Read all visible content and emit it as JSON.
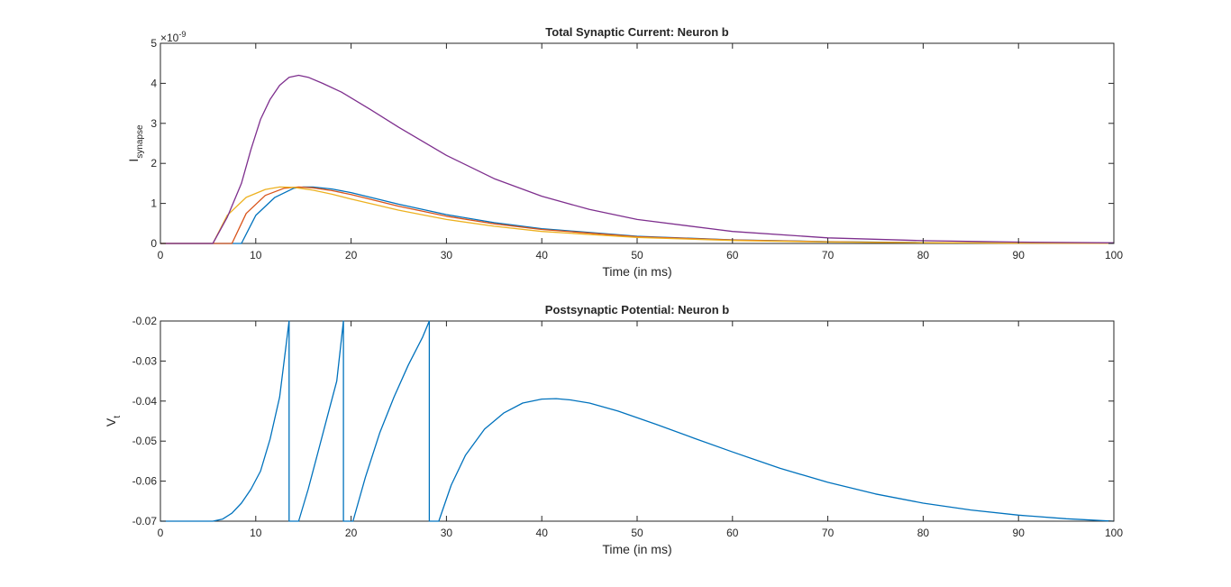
{
  "chart_data": [
    {
      "type": "line",
      "title": "Total Synaptic Current: Neuron b",
      "xlabel": "Time (in ms)",
      "ylabel_main": "I",
      "ylabel_sub": "synapse",
      "exponent_base": "×10",
      "exponent_power": "-9",
      "xlim": [
        0,
        100
      ],
      "ylim": [
        0,
        5
      ],
      "xticks": [
        "0",
        "10",
        "20",
        "30",
        "40",
        "50",
        "60",
        "70",
        "80",
        "90",
        "100"
      ],
      "yticks": [
        "0",
        "1",
        "2",
        "3",
        "4",
        "5"
      ],
      "grid": false,
      "series": [
        {
          "color": "#0072BD",
          "x": [
            0,
            8.5,
            10,
            12,
            14,
            15,
            16,
            18,
            20,
            25,
            30,
            35,
            40,
            50,
            60,
            70,
            80,
            90,
            100
          ],
          "y": [
            0,
            0,
            0.7,
            1.15,
            1.38,
            1.41,
            1.41,
            1.36,
            1.27,
            0.98,
            0.72,
            0.52,
            0.37,
            0.18,
            0.09,
            0.045,
            0.022,
            0.011,
            0.005
          ]
        },
        {
          "color": "#D95319",
          "x": [
            0,
            7.5,
            9,
            11,
            13,
            14.5,
            16,
            18,
            20,
            25,
            30,
            35,
            40,
            50,
            60,
            70,
            80,
            90,
            100
          ],
          "y": [
            0,
            0,
            0.75,
            1.2,
            1.38,
            1.41,
            1.39,
            1.32,
            1.22,
            0.93,
            0.68,
            0.49,
            0.35,
            0.17,
            0.085,
            0.042,
            0.021,
            0.01,
            0.005
          ]
        },
        {
          "color": "#EDB120",
          "x": [
            0,
            5.5,
            7,
            9,
            11,
            12.5,
            14,
            16,
            18,
            20,
            25,
            30,
            35,
            40,
            50,
            60,
            70,
            80,
            90,
            100
          ],
          "y": [
            0,
            0,
            0.7,
            1.15,
            1.35,
            1.41,
            1.4,
            1.33,
            1.23,
            1.11,
            0.83,
            0.6,
            0.43,
            0.3,
            0.15,
            0.075,
            0.037,
            0.018,
            0.009,
            0.004
          ]
        },
        {
          "color": "#7E2F8E",
          "x": [
            0,
            5.5,
            7,
            8.5,
            9.5,
            10.5,
            11.5,
            12.5,
            13.5,
            14.5,
            15.5,
            17,
            19,
            22,
            25,
            30,
            35,
            40,
            45,
            50,
            60,
            70,
            80,
            90,
            100
          ],
          "y": [
            0,
            0,
            0.65,
            1.5,
            2.35,
            3.1,
            3.6,
            3.95,
            4.15,
            4.2,
            4.15,
            4.0,
            3.78,
            3.35,
            2.9,
            2.2,
            1.62,
            1.18,
            0.85,
            0.6,
            0.3,
            0.14,
            0.07,
            0.033,
            0.016
          ]
        }
      ]
    },
    {
      "type": "line",
      "title": "Postsynaptic Potential: Neuron b",
      "xlabel": "Time (in ms)",
      "ylabel_main": "V",
      "ylabel_sub": "t",
      "xlim": [
        0,
        100
      ],
      "ylim": [
        -0.07,
        -0.02
      ],
      "xticks": [
        "0",
        "10",
        "20",
        "30",
        "40",
        "50",
        "60",
        "70",
        "80",
        "90",
        "100"
      ],
      "yticks": [
        "-0.07",
        "-0.06",
        "-0.05",
        "-0.04",
        "-0.03",
        "-0.02"
      ],
      "grid": false,
      "series": [
        {
          "color": "#0072BD",
          "x": [
            0,
            5.5,
            6.5,
            7.5,
            8.5,
            9.5,
            10.5,
            11.5,
            12.5,
            13.5,
            13.5,
            14.5,
            15.5,
            16.5,
            17.5,
            18.5,
            19.2,
            19.2,
            20.2,
            21.5,
            23,
            24.5,
            26,
            27.5,
            28.2,
            28.2,
            29.2,
            30.5,
            32,
            34,
            36,
            38,
            40,
            41.5,
            43,
            45,
            48,
            52,
            56,
            60,
            65,
            70,
            75,
            80,
            85,
            90,
            95,
            100
          ],
          "y": [
            -0.07,
            -0.07,
            -0.0695,
            -0.068,
            -0.0655,
            -0.062,
            -0.0575,
            -0.0495,
            -0.039,
            -0.02,
            -0.07,
            -0.07,
            -0.062,
            -0.053,
            -0.044,
            -0.035,
            -0.02,
            -0.07,
            -0.07,
            -0.059,
            -0.048,
            -0.039,
            -0.031,
            -0.024,
            -0.02,
            -0.07,
            -0.07,
            -0.061,
            -0.0535,
            -0.047,
            -0.043,
            -0.0405,
            -0.0395,
            -0.0394,
            -0.0397,
            -0.0405,
            -0.0425,
            -0.0458,
            -0.0493,
            -0.0527,
            -0.0568,
            -0.0603,
            -0.0632,
            -0.0655,
            -0.0672,
            -0.0685,
            -0.0694,
            -0.07
          ]
        }
      ]
    }
  ]
}
